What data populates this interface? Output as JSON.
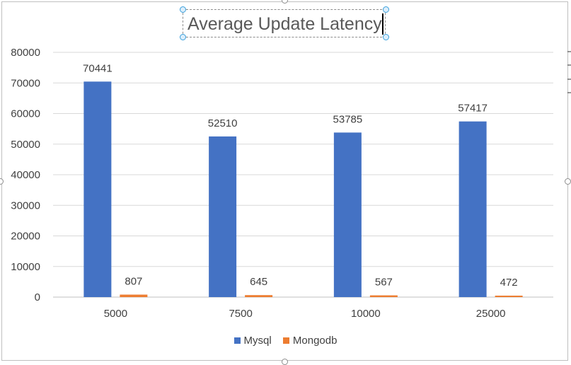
{
  "chart_data": {
    "type": "bar",
    "title": "Average Update Latency",
    "categories": [
      "5000",
      "7500",
      "10000",
      "25000"
    ],
    "series": [
      {
        "name": "Mysql",
        "color": "#4472C4",
        "values": [
          70441,
          52510,
          53785,
          57417
        ]
      },
      {
        "name": "Mongodb",
        "color": "#ED7D31",
        "values": [
          807,
          645,
          567,
          472
        ]
      }
    ],
    "ylim": [
      0,
      80000
    ],
    "yticks": [
      0,
      10000,
      20000,
      30000,
      40000,
      50000,
      60000,
      70000,
      80000
    ],
    "xlabel": "",
    "ylabel": "",
    "grid": true,
    "legend": "bottom",
    "data_labels": true
  }
}
